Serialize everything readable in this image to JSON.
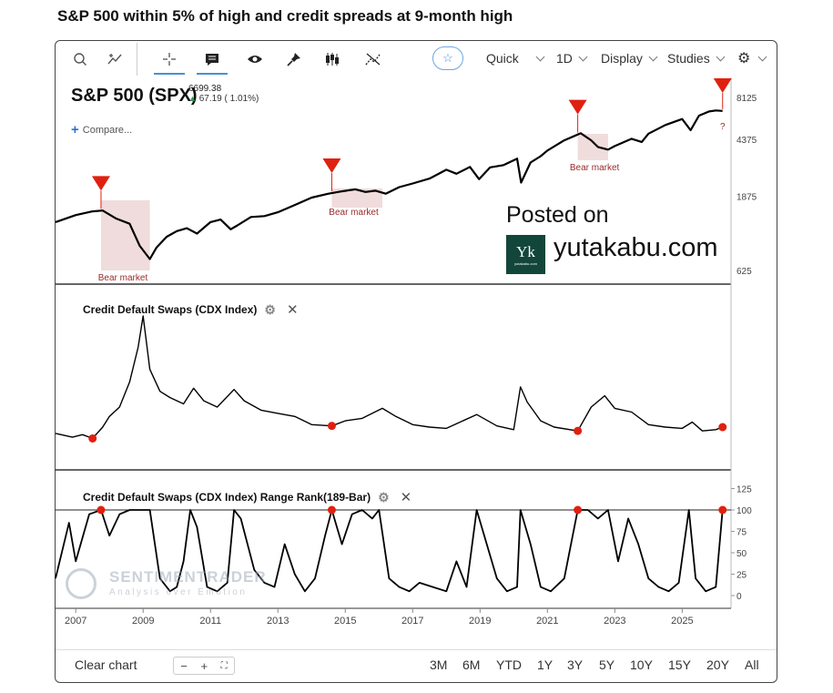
{
  "page_title": "S&P 500 within 5% of high and credit spreads at 9-month high",
  "toolbar": {
    "quick_label": "Quick",
    "interval_label": "1D",
    "display_label": "Display",
    "studies_label": "Studies",
    "icons": [
      "search-icon",
      "compare-icon",
      "crosshair-icon",
      "comment-icon",
      "eye-icon",
      "pin-icon",
      "candlestick-icon",
      "measure-icon",
      "star-icon",
      "gear-icon"
    ]
  },
  "symbol": {
    "name": "S&P 500 (SPX)",
    "price": "6699.38",
    "change": "67.19 ( 1.01%)",
    "change_arrow": "▲",
    "compare_label": "Compare..."
  },
  "panes": {
    "cdx_title": "Credit Default Swaps (CDX Index)",
    "rank_title": "Credit Default Swaps (CDX Index) Range Rank(189-Bar)"
  },
  "watermark": {
    "posted": "Posted on",
    "site": "yutakabu.com",
    "logo_letter": "Yk",
    "logo_small": "yutakabu.com",
    "sentiment_big": "SENTIMENTRADER",
    "sentiment_sub": "Analysis over Emotion"
  },
  "bottom_bar": {
    "clear_label": "Clear chart",
    "zoom_minus": "−",
    "zoom_plus": "+",
    "zoom_fit": "⛶",
    "ranges": [
      "3M",
      "6M",
      "YTD",
      "1Y",
      "3Y",
      "5Y",
      "10Y",
      "15Y",
      "20Y",
      "All"
    ]
  },
  "colors": {
    "accent": "#4a8fd6",
    "signal": "#e02010",
    "bear_shade": "#f0dcdc",
    "bear_text": "#9b2a2a",
    "line": "#000000"
  },
  "chart_data": [
    {
      "type": "line",
      "name": "S&P 500 (SPX)",
      "scale": "log",
      "y_ticks": [
        625,
        1875,
        4375,
        8125
      ],
      "x_ticks": [
        "2007",
        "2009",
        "2011",
        "2013",
        "2015",
        "2017",
        "2019",
        "2021",
        "2023",
        "2025"
      ],
      "x": [
        2006.4,
        2007.0,
        2007.5,
        2007.8,
        2008.2,
        2008.6,
        2008.9,
        2009.2,
        2009.4,
        2009.7,
        2010.0,
        2010.3,
        2010.6,
        2011.0,
        2011.3,
        2011.6,
        2011.8,
        2012.2,
        2012.6,
        2013.0,
        2013.5,
        2014.0,
        2014.5,
        2014.9,
        2015.3,
        2015.6,
        2015.9,
        2016.2,
        2016.6,
        2017.0,
        2017.5,
        2018.0,
        2018.3,
        2018.7,
        2018.97,
        2019.3,
        2019.7,
        2020.1,
        2020.22,
        2020.5,
        2020.8,
        2021.0,
        2021.5,
        2021.99,
        2022.3,
        2022.5,
        2022.8,
        2023.0,
        2023.5,
        2023.8,
        2024.0,
        2024.5,
        2025.0,
        2025.25,
        2025.5,
        2025.8,
        2026.0,
        2026.2
      ],
      "values": [
        1280,
        1420,
        1500,
        1520,
        1350,
        1250,
        900,
        740,
        880,
        1030,
        1120,
        1170,
        1080,
        1280,
        1330,
        1150,
        1220,
        1380,
        1400,
        1480,
        1650,
        1840,
        1950,
        2020,
        2080,
        2000,
        2040,
        1950,
        2150,
        2270,
        2440,
        2780,
        2620,
        2900,
        2420,
        2880,
        2980,
        3280,
        2300,
        3100,
        3400,
        3700,
        4300,
        4780,
        4300,
        3900,
        3750,
        3950,
        4400,
        4200,
        4750,
        5400,
        5900,
        5000,
        6200,
        6600,
        6700,
        6650
      ],
      "signals": [
        2007.75,
        2014.6,
        2021.9,
        2026.2
      ],
      "annotations": [
        "Bear market",
        "Bear market",
        "Bear market",
        "?"
      ]
    },
    {
      "type": "line",
      "name": "Credit Default Swaps (CDX Index)",
      "x": [
        2006.4,
        2006.9,
        2007.2,
        2007.5,
        2007.8,
        2008.0,
        2008.3,
        2008.6,
        2008.85,
        2009.0,
        2009.2,
        2009.5,
        2009.8,
        2010.2,
        2010.5,
        2010.8,
        2011.2,
        2011.7,
        2012.0,
        2012.5,
        2013.0,
        2013.5,
        2014.0,
        2014.6,
        2015.0,
        2015.5,
        2016.1,
        2016.5,
        2017.0,
        2017.5,
        2018.0,
        2018.9,
        2019.5,
        2020.0,
        2020.2,
        2020.4,
        2020.8,
        2021.2,
        2021.9,
        2022.3,
        2022.7,
        2023.0,
        2023.5,
        2024.0,
        2024.5,
        2025.0,
        2025.3,
        2025.6,
        2026.0,
        2026.2
      ],
      "values": [
        48,
        42,
        46,
        40,
        58,
        75,
        90,
        130,
        185,
        235,
        150,
        115,
        105,
        95,
        120,
        100,
        90,
        118,
        100,
        85,
        80,
        75,
        62,
        60,
        68,
        72,
        88,
        75,
        62,
        58,
        56,
        78,
        60,
        54,
        122,
        98,
        68,
        58,
        52,
        90,
        108,
        88,
        82,
        62,
        58,
        56,
        66,
        52,
        54,
        58
      ],
      "signals": [
        2007.5,
        2014.6,
        2021.9,
        2026.2
      ]
    },
    {
      "type": "line",
      "name": "Credit Default Swaps (CDX Index) Range Rank(189-Bar)",
      "y_ticks": [
        0,
        25,
        50,
        75,
        100,
        125
      ],
      "x": [
        2006.4,
        2006.8,
        2007.0,
        2007.4,
        2007.75,
        2008.0,
        2008.3,
        2008.6,
        2008.9,
        2009.2,
        2009.5,
        2009.8,
        2010.0,
        2010.2,
        2010.4,
        2010.6,
        2010.9,
        2011.2,
        2011.5,
        2011.7,
        2011.9,
        2012.3,
        2012.6,
        2012.9,
        2013.2,
        2013.5,
        2013.8,
        2014.1,
        2014.4,
        2014.6,
        2014.9,
        2015.2,
        2015.5,
        2015.8,
        2016.0,
        2016.3,
        2016.6,
        2016.9,
        2017.2,
        2017.6,
        2018.0,
        2018.3,
        2018.6,
        2018.9,
        2019.2,
        2019.5,
        2019.8,
        2020.1,
        2020.2,
        2020.5,
        2020.8,
        2021.1,
        2021.5,
        2021.9,
        2022.2,
        2022.5,
        2022.8,
        2023.1,
        2023.4,
        2023.7,
        2024.0,
        2024.3,
        2024.6,
        2024.9,
        2025.2,
        2025.4,
        2025.7,
        2026.0,
        2026.2
      ],
      "values": [
        20,
        85,
        40,
        95,
        100,
        70,
        95,
        100,
        100,
        100,
        20,
        5,
        10,
        40,
        100,
        80,
        10,
        5,
        15,
        100,
        90,
        30,
        15,
        10,
        60,
        25,
        5,
        20,
        70,
        100,
        60,
        95,
        100,
        90,
        100,
        20,
        10,
        5,
        15,
        10,
        5,
        40,
        10,
        100,
        60,
        20,
        5,
        10,
        100,
        60,
        10,
        5,
        20,
        100,
        100,
        90,
        100,
        40,
        90,
        60,
        20,
        10,
        5,
        15,
        100,
        20,
        5,
        10,
        100
      ],
      "signals": [
        2007.75,
        2014.6,
        2021.9,
        2026.2
      ]
    }
  ]
}
